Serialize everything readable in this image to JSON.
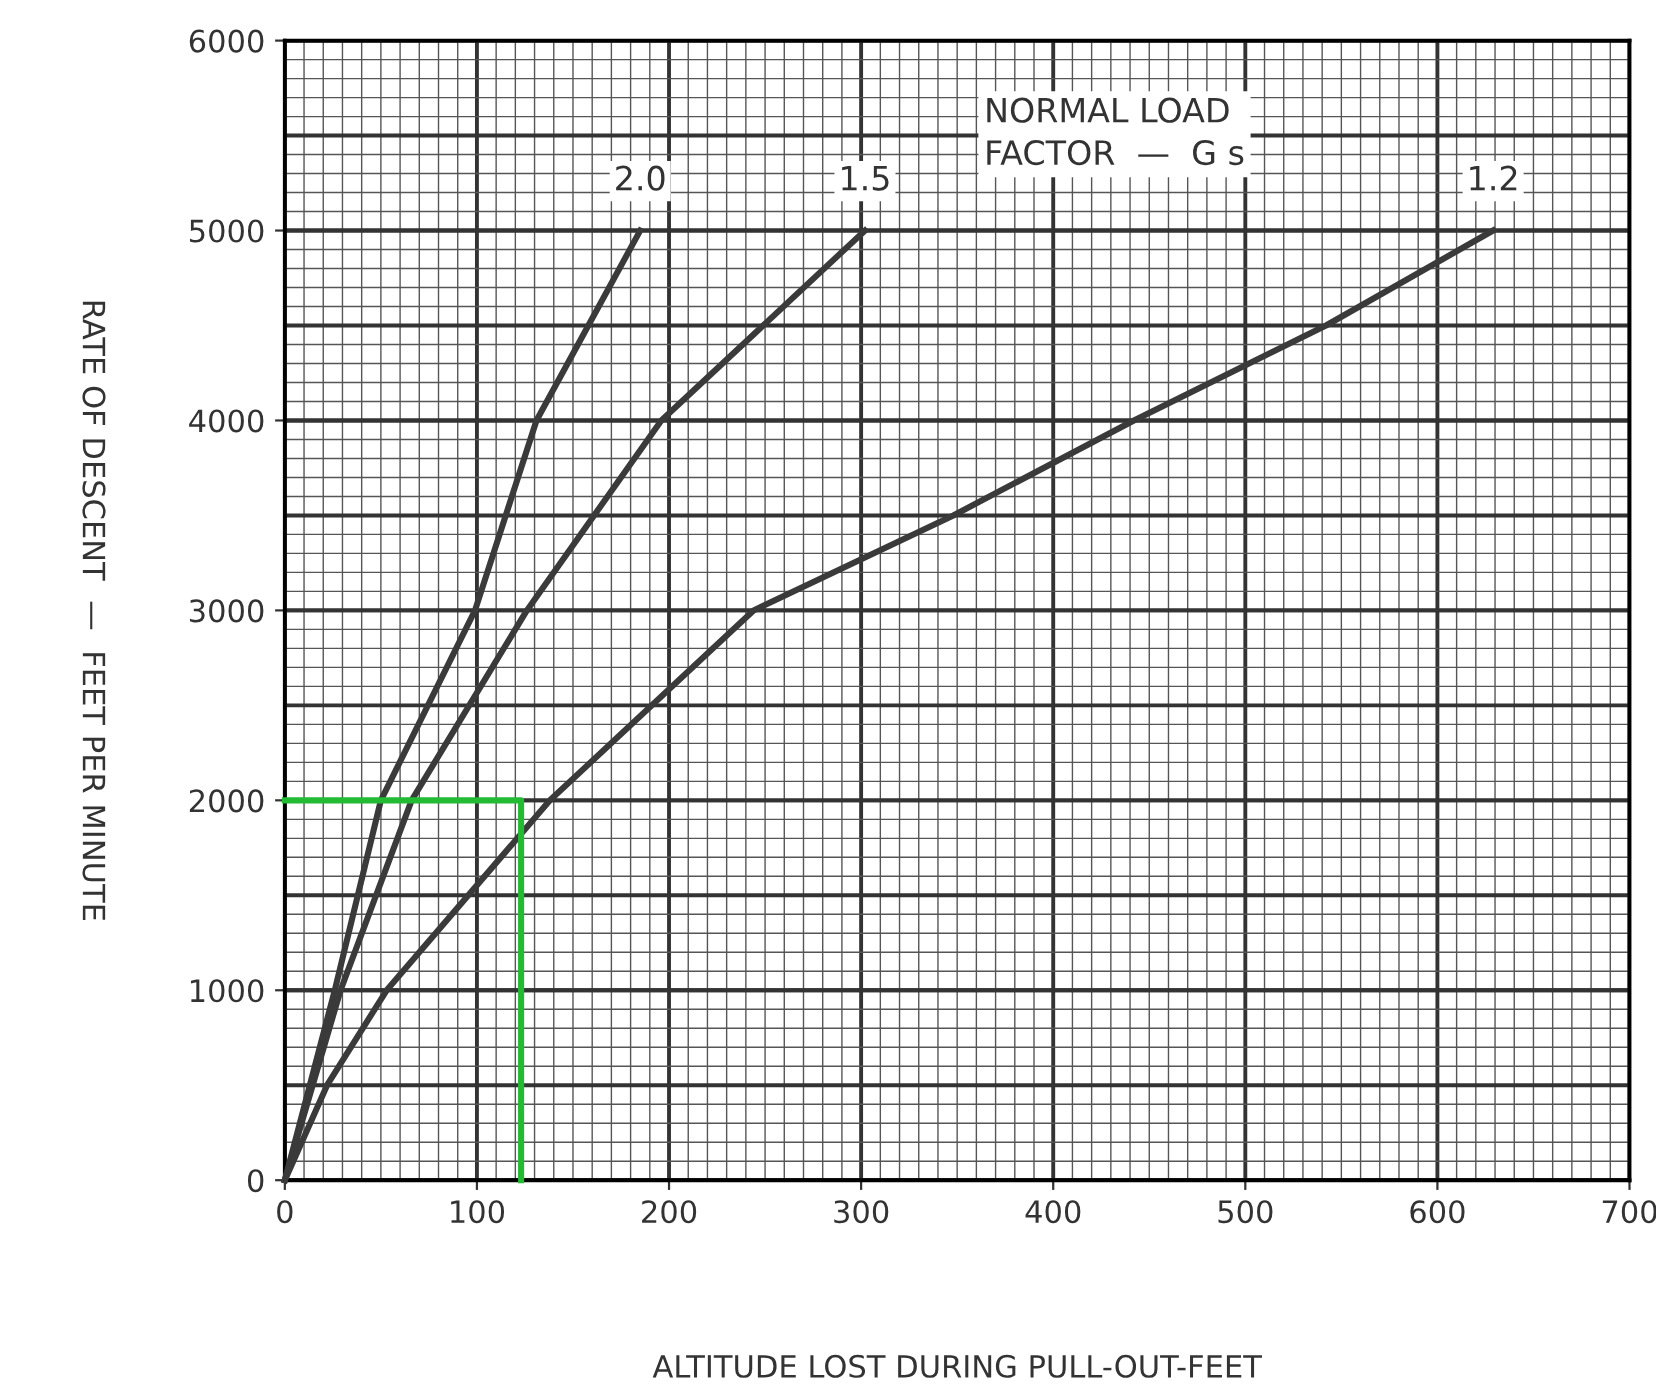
{
  "chart_data": {
    "type": "line",
    "xlabel": "ALTITUDE LOST DURING PULL-OUT-FEET",
    "ylabel": "RATE OF DESCENT  —  FEET PER MINUTE",
    "xlim": [
      0,
      700
    ],
    "xticks": [
      0,
      100,
      200,
      300,
      400,
      500,
      600,
      700
    ],
    "ylim": [
      0,
      6000
    ],
    "yticks": [
      0,
      1000,
      2000,
      3000,
      4000,
      5000,
      6000
    ],
    "grid": true,
    "legend": false,
    "marker": "none",
    "line_style": "solid",
    "annotations": [
      "NORMAL LOAD\nFACTOR  —  G s"
    ],
    "series": [
      {
        "name": "2.0",
        "color": "#3a3a3a",
        "x": [
          0,
          26,
          50,
          99,
          131,
          185
        ],
        "values": [
          0,
          1000,
          2000,
          3000,
          4000,
          5000
        ]
      },
      {
        "name": "1.5",
        "color": "#3a3a3a",
        "x": [
          0,
          29,
          66,
          126,
          196,
          302
        ],
        "values": [
          0,
          1000,
          2000,
          3000,
          4000,
          5000
        ]
      },
      {
        "name": "1.2",
        "color": "#3a3a3a",
        "x": [
          0,
          22,
          53,
          138,
          244,
          348,
          442,
          542,
          629
        ],
        "values": [
          0,
          500,
          1000,
          2000,
          3000,
          3500,
          4000,
          4500,
          5000
        ]
      },
      {
        "color": "#22bb33",
        "x": [
          0,
          123,
          123,
          123
        ],
        "values": [
          2000,
          2000,
          1850,
          0
        ]
      }
    ]
  }
}
